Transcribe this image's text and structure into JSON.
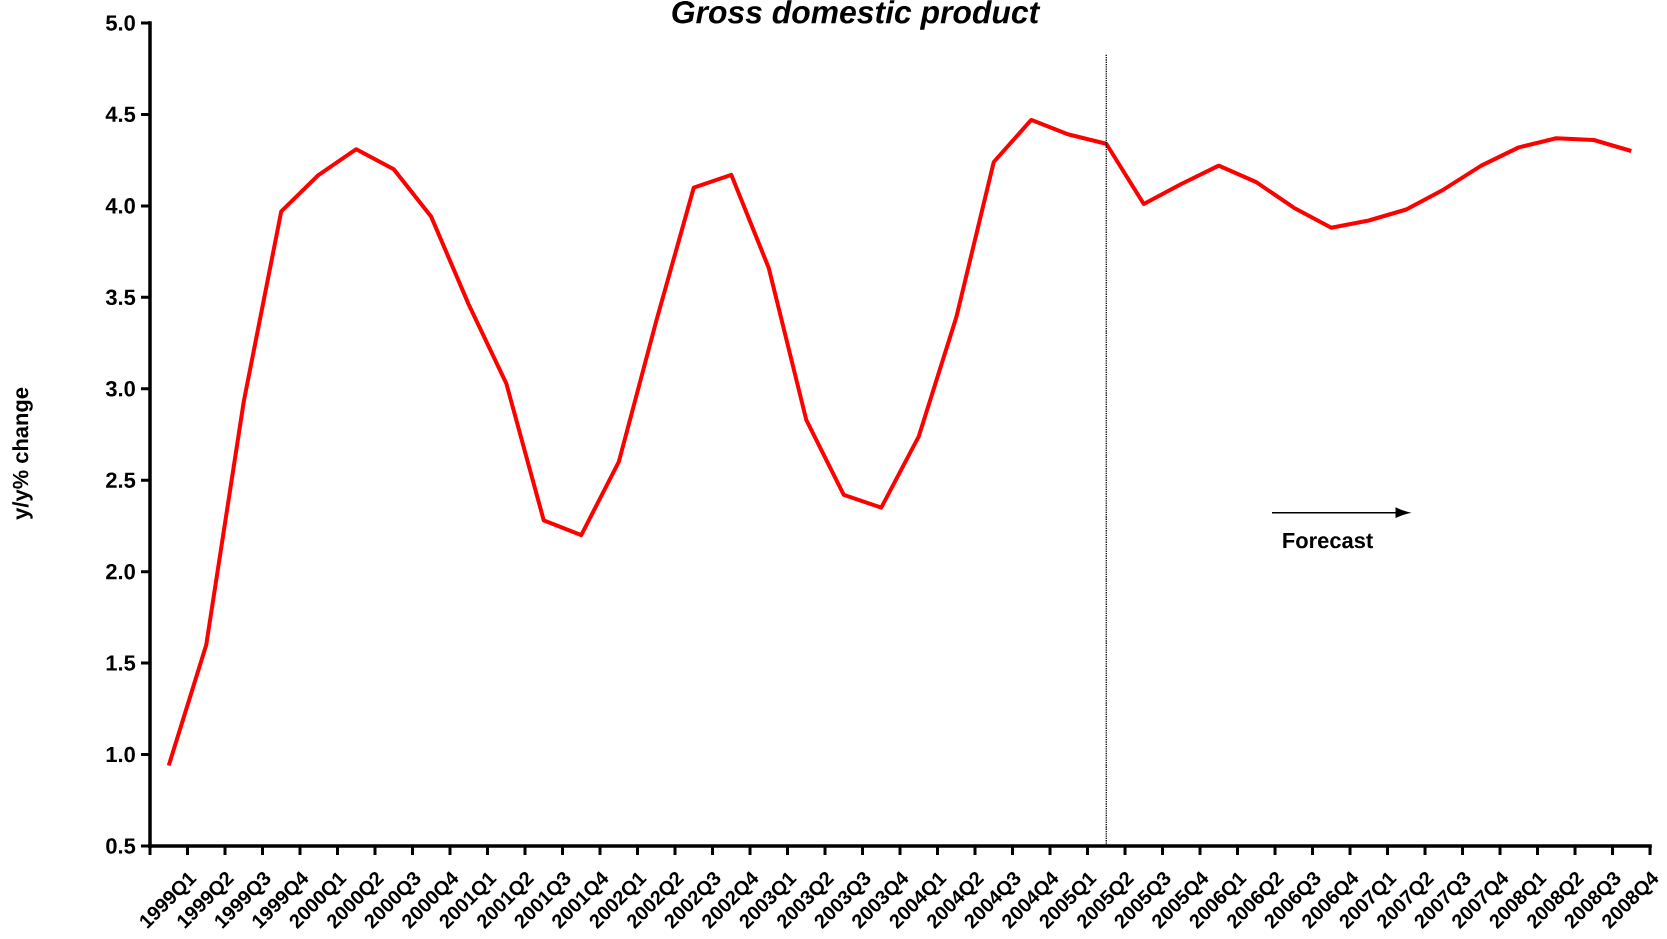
{
  "chart_data": {
    "type": "line",
    "title": "Gross domestic product",
    "ylabel": "y/y% change",
    "annotations": [
      "Forecast"
    ],
    "categories": [
      "1999Q1",
      "1999Q2",
      "1999Q3",
      "1999Q4",
      "2000Q1",
      "2000Q2",
      "2000Q3",
      "2000Q4",
      "2001Q1",
      "2001Q2",
      "2001Q3",
      "2001Q4",
      "2002Q1",
      "2002Q2",
      "2002Q3",
      "2002Q4",
      "2003Q1",
      "2003Q2",
      "2003Q3",
      "2003Q4",
      "2004Q1",
      "2004Q2",
      "2004Q3",
      "2004Q4",
      "2005Q1",
      "2005Q2",
      "2005Q3",
      "2005Q4",
      "2006Q1",
      "2006Q2",
      "2006Q3",
      "2006Q4",
      "2007Q1",
      "2007Q2",
      "2007Q3",
      "2007Q4",
      "2008Q1",
      "2008Q2",
      "2008Q3",
      "2008Q4"
    ],
    "series": [
      {
        "color": "#ff0000",
        "values": [
          0.94,
          1.6,
          2.93,
          3.97,
          4.17,
          4.31,
          4.2,
          3.94,
          3.46,
          3.03,
          2.28,
          2.2,
          2.6,
          3.37,
          4.1,
          4.17,
          3.66,
          2.83,
          2.42,
          2.35,
          2.74,
          3.39,
          4.24,
          4.47,
          4.39,
          4.34,
          4.01,
          4.12,
          4.22,
          4.13,
          3.99,
          3.88,
          3.92,
          3.98,
          4.09,
          4.22,
          4.32,
          4.37,
          4.36,
          4.3
        ]
      }
    ],
    "ylim": [
      0.5,
      5.0
    ],
    "yticks": [
      {
        "value": 0.5,
        "label": "0.5"
      },
      {
        "value": 1.0,
        "label": "1.0"
      },
      {
        "value": 1.5,
        "label": "1.5"
      },
      {
        "value": 2.0,
        "label": "2.0"
      },
      {
        "value": 2.5,
        "label": "2.5"
      },
      {
        "value": 3.0,
        "label": "3.0"
      },
      {
        "value": 3.5,
        "label": "3.5"
      },
      {
        "value": 4.0,
        "label": "4.0"
      },
      {
        "value": 4.5,
        "label": "4.5"
      },
      {
        "value": 5.0,
        "label": "5.0"
      }
    ],
    "ref_lines": [
      {
        "axis": "x",
        "value": "2005Q2",
        "color": "#000000",
        "line_style": "dotted"
      }
    ],
    "marker": "none",
    "line_style": "solid"
  }
}
